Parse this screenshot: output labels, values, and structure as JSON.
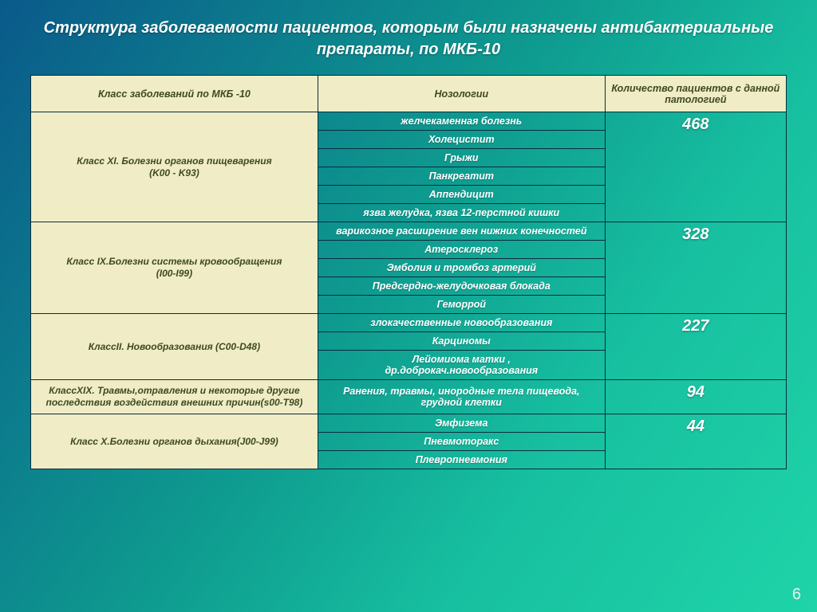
{
  "title": "Структура заболеваемости пациентов, которым были назначены антибактериальные препараты, по МКБ-10",
  "page_number": "6",
  "headers": {
    "col1": "Класс заболеваний по МКБ -10",
    "col2": "Нозологии",
    "col3": "Количество пациентов с данной патологией"
  },
  "groups": [
    {
      "class_label": "Класс XI. Болезни органов пищеварения\n(K00 - K93)",
      "count": "468",
      "nosologies": [
        "желчекаменная болезнь",
        "Холецистит",
        "Грыжи",
        "Панкреатит",
        "Аппендицит",
        "язва желудка, язва 12-перстной кишки"
      ]
    },
    {
      "class_label": "Класс IX.Болезни системы кровообращения\n(I00-I99)",
      "count": "328",
      "nosologies": [
        "варикозное расширение вен нижних конечностей",
        "Атеросклероз",
        "Эмболия и тромбоз артерий",
        "Предсердно-желудочковая блокада",
        "Геморрой"
      ]
    },
    {
      "class_label": "КлассII. Новообразования (C00-D48)",
      "count": "227",
      "nosologies": [
        "злокачественные новообразования",
        "Карциномы",
        "Лейомиома матки ,\nдр.доброкач.новообразования"
      ]
    },
    {
      "class_label": "КлассXIX. Травмы,отравления и некоторые другие последствия воздействия внешних причин(s00-T98)",
      "count": "94",
      "nosologies": [
        "Ранения, травмы, инородные тела пищевода, грудной клетки"
      ]
    },
    {
      "class_label": "Класс X.Болезни органов дыхания(J00-J99)",
      "count": "44",
      "nosologies": [
        "Эмфизема",
        "Пневмоторакс",
        "Плевропневмония"
      ]
    }
  ],
  "style": {
    "background_gradient": [
      "#0a5a8a",
      "#0e9a8f",
      "#17c0a0",
      "#1fd4a8"
    ],
    "header_bg": "#f0ecc6",
    "header_text": "#3d4a20",
    "border_color": "#0a2d3d",
    "title_fontsize": 20,
    "count_fontsize": 20,
    "cell_fontsize": 12.5
  }
}
